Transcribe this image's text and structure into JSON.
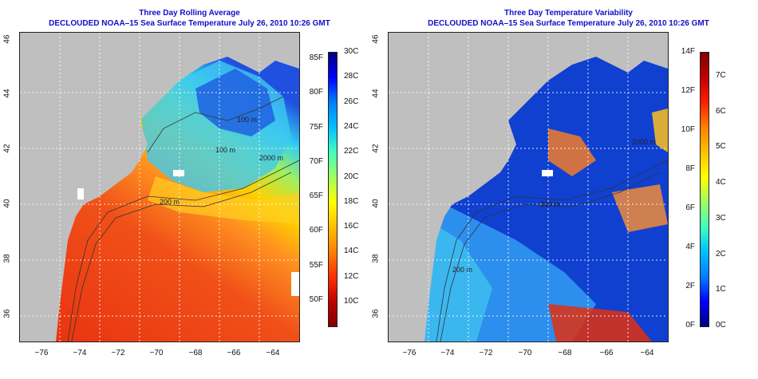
{
  "colors": {
    "land": "#bfbfbf",
    "title": "#1010c8",
    "grid": "#ffffff",
    "contour": "#333333"
  },
  "left_panel": {
    "title_line1": "Three Day Rolling Average",
    "title_line2": "DECLOUDED NOAA–15 Sea Surface Temperature July 26, 2010 10:26 GMT",
    "x_ticks": [
      "−76",
      "−74",
      "−72",
      "−70",
      "−68",
      "−66",
      "−64"
    ],
    "y_ticks": [
      "46",
      "44",
      "42",
      "40",
      "38",
      "36"
    ],
    "colorbar": {
      "palette": [
        "#000080",
        "#0000ff",
        "#0080ff",
        "#00c0ff",
        "#40ffc0",
        "#a0ff60",
        "#ffff00",
        "#ffc000",
        "#ff8000",
        "#ff3000",
        "#c00000",
        "#800000"
      ],
      "celsius_labels": [
        "30C",
        "28C",
        "26C",
        "24C",
        "22C",
        "20C",
        "18C",
        "16C",
        "14C",
        "12C",
        "10C"
      ],
      "fahrenheit_labels": [
        "85F",
        "80F",
        "75F",
        "70F",
        "65F",
        "60F",
        "55F",
        "50F"
      ]
    },
    "contour_labels": [
      "100 m",
      "200 m",
      "2000 m",
      "200 m",
      "100 m",
      "200 m"
    ]
  },
  "right_panel": {
    "title_line1": "Three Day Temperature Variability",
    "title_line2": "DECLOUDED NOAA–15 Sea Surface Temperature July 26, 2010 10:26 GMT",
    "x_ticks": [
      "−76",
      "−74",
      "−72",
      "−70",
      "−68",
      "−66",
      "−64"
    ],
    "y_ticks": [
      "46",
      "44",
      "42",
      "40",
      "38",
      "36"
    ],
    "colorbar": {
      "palette": [
        "#800000",
        "#c00000",
        "#ff2000",
        "#ff8000",
        "#ffc000",
        "#ffff00",
        "#a0ff60",
        "#40ffc0",
        "#00c0ff",
        "#0080ff",
        "#0000ff",
        "#000080"
      ],
      "celsius_labels": [
        "7C",
        "6C",
        "5C",
        "4C",
        "3C",
        "2C",
        "1C",
        "0C"
      ],
      "fahrenheit_labels": [
        "14F",
        "12F",
        "10F",
        "8F",
        "6F",
        "4F",
        "2F",
        "0F"
      ]
    },
    "contour_labels": [
      "2000 m",
      "200 m",
      "200 m"
    ]
  }
}
